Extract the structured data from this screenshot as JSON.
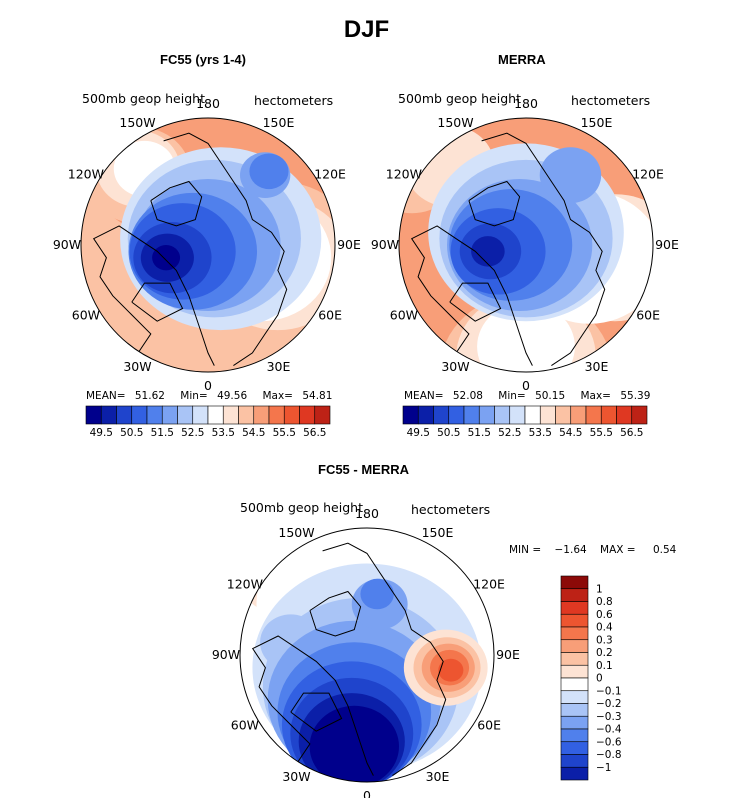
{
  "title": "DJF",
  "palette": {
    "blue": [
      "#00008c",
      "#0b1fa8",
      "#1f44cc",
      "#3260e2",
      "#5080ec",
      "#7ba2f2",
      "#a9c4f6",
      "#d3e2fa"
    ],
    "red": [
      "#fde3d4",
      "#fbc2a4",
      "#f89e78",
      "#f4764c",
      "#ed5530",
      "#df3822",
      "#bd2216",
      "#8c0a08"
    ],
    "white": "#ffffff"
  },
  "panels": [
    {
      "title": "FC55 (yrs 1-4)",
      "variable": "500mb geop height",
      "units": "hectometers",
      "lon_labels": [
        "180",
        "150E",
        "120E",
        "90E",
        "60E",
        "30E",
        "0",
        "30W",
        "60W",
        "90W",
        "120W",
        "150W"
      ],
      "stats": {
        "mean_label": "MEAN=",
        "mean": "51.62",
        "min_label": "Min=",
        "min": "49.56",
        "max_label": "Max=",
        "max": "54.81"
      },
      "colorbar_ticks": [
        "49.5",
        "50.5",
        "51.5",
        "52.5",
        "53.5",
        "54.5",
        "55.5",
        "56.5"
      ]
    },
    {
      "title": "MERRA",
      "variable": "500mb geop height",
      "units": "hectometers",
      "lon_labels": [
        "180",
        "150E",
        "120E",
        "90E",
        "60E",
        "30E",
        "0",
        "30W",
        "60W",
        "90W",
        "120W",
        "150W"
      ],
      "stats": {
        "mean_label": "MEAN=",
        "mean": "52.08",
        "min_label": "Min=",
        "min": "50.15",
        "max_label": "Max=",
        "max": "55.39"
      },
      "colorbar_ticks": [
        "49.5",
        "50.5",
        "51.5",
        "52.5",
        "53.5",
        "54.5",
        "55.5",
        "56.5"
      ]
    },
    {
      "title": "FC55 - MERRA",
      "variable": "500mb geop height",
      "units": "hectometers",
      "lon_labels": [
        "180",
        "150E",
        "120E",
        "90E",
        "60E",
        "30E",
        "0",
        "30W",
        "60W",
        "90W",
        "120W",
        "150W"
      ],
      "stats": {
        "min_label": "MIN =",
        "min": "−1.64",
        "max_label": "MAX =",
        "max": "0.54"
      },
      "colorbar_ticks": [
        "1",
        "0.8",
        "0.6",
        "0.4",
        "0.3",
        "0.2",
        "0.1",
        "0",
        "−0.1",
        "−0.2",
        "−0.3",
        "−0.4",
        "−0.6",
        "−0.8",
        "−1"
      ]
    }
  ]
}
